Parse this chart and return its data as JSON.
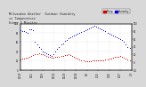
{
  "title": "Milwaukee Weather  Outdoor Humidity",
  "title2": "vs Temperature",
  "title3": "Every 5 Minutes",
  "title_fontsize": 2.5,
  "background_color": "#d8d8d8",
  "plot_bg_color": "#ffffff",
  "humidity_color": "#0000dd",
  "temp_color": "#cc0000",
  "legend_humidity": "Humidity",
  "legend_temp": "Temp",
  "ylim_humidity": [
    0,
    100
  ],
  "ylim_temp": [
    -20,
    100
  ],
  "marker_size": 0.5,
  "scatter_alpha": 1.0,
  "humidity_data_x": [
    0,
    2,
    4,
    6,
    8,
    10,
    12,
    14,
    16,
    18,
    20,
    22,
    24,
    26,
    28,
    30,
    32,
    34,
    36,
    38,
    40,
    42,
    44,
    46,
    48,
    50,
    52,
    54,
    56,
    58,
    60,
    62,
    64,
    66,
    68,
    70,
    72,
    74,
    76,
    78,
    80,
    82,
    84,
    86,
    88,
    90,
    92,
    94,
    96,
    98,
    100,
    102,
    104,
    106,
    108,
    110,
    112,
    114,
    116,
    118
  ],
  "humidity_data_y": [
    85,
    84,
    83,
    82,
    81,
    88,
    87,
    86,
    60,
    55,
    50,
    45,
    40,
    38,
    36,
    34,
    32,
    30,
    35,
    40,
    45,
    50,
    55,
    58,
    62,
    65,
    68,
    70,
    72,
    74,
    76,
    78,
    80,
    82,
    84,
    86,
    88,
    90,
    92,
    94,
    95,
    93,
    91,
    89,
    87,
    85,
    83,
    81,
    79,
    77,
    75,
    73,
    71,
    69,
    67,
    65,
    60,
    55,
    50,
    48
  ],
  "temp_data_x": [
    0,
    2,
    4,
    6,
    8,
    10,
    12,
    14,
    16,
    18,
    20,
    22,
    24,
    26,
    28,
    30,
    32,
    34,
    36,
    38,
    40,
    42,
    44,
    46,
    48,
    50,
    52,
    54,
    56,
    58,
    60,
    62,
    64,
    66,
    68,
    70,
    72,
    74,
    76,
    78,
    80,
    82,
    84,
    86,
    88,
    90,
    92,
    94,
    96,
    98,
    100,
    102,
    104,
    106,
    108,
    110,
    112,
    114,
    116,
    118
  ],
  "temp_data_y": [
    8,
    9,
    10,
    11,
    12,
    14,
    16,
    18,
    20,
    22,
    24,
    22,
    20,
    18,
    16,
    14,
    13,
    12,
    12,
    13,
    14,
    15,
    16,
    17,
    18,
    19,
    20,
    18,
    16,
    14,
    12,
    10,
    8,
    6,
    4,
    3,
    3,
    3,
    3,
    4,
    4,
    4,
    5,
    5,
    6,
    6,
    7,
    8,
    9,
    10,
    12,
    13,
    14,
    15,
    16,
    14,
    12,
    10,
    8,
    6
  ],
  "xtick_labels": [
    "11/25",
    "12/2",
    "12/9",
    "12/16",
    "12/23",
    "12/30",
    "1/6",
    "1/13",
    "1/20",
    "1/27",
    "2/3"
  ],
  "xtick_positions": [
    0,
    12,
    24,
    36,
    48,
    60,
    72,
    84,
    96,
    108,
    120
  ],
  "left_yticks": [
    0,
    20,
    40,
    60,
    80,
    100
  ],
  "left_yticklabels": [
    "0",
    "20",
    "40",
    "60",
    "80",
    "100"
  ],
  "right_yticks": [
    -20,
    0,
    20,
    40,
    60,
    80,
    100
  ],
  "right_yticklabels": [
    "-20",
    "0",
    "20",
    "40",
    "60",
    "80",
    "100"
  ]
}
